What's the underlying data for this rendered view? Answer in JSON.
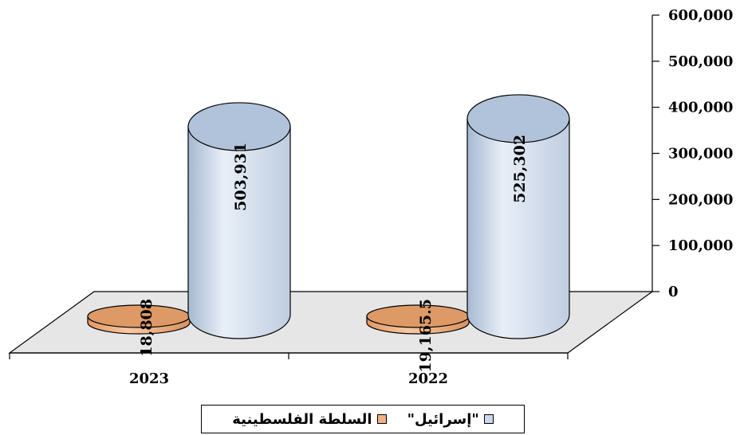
{
  "chart_data": {
    "type": "bar",
    "style": "3d-cylinder",
    "categories": [
      "2023",
      "2022"
    ],
    "series": [
      {
        "name": "السلطة الفلسطينية",
        "values": [
          18808,
          19165.5
        ],
        "labels": [
          "18,808",
          "19,165.5"
        ],
        "color": "#f0b285"
      },
      {
        "name": "\"إسرائيل\"",
        "values": [
          503931,
          525302
        ],
        "labels": [
          "503,931",
          "525,302"
        ],
        "color": "#c9d8ea"
      }
    ],
    "y_axis": {
      "position": "right",
      "ylim": [
        0,
        600000
      ],
      "ticks": [
        "0",
        "100,000",
        "200,000",
        "300,000",
        "400,000",
        "500,000",
        "600,000"
      ]
    },
    "title": "",
    "xlabel": "",
    "ylabel": "",
    "grid": false,
    "legend_position": "bottom"
  }
}
